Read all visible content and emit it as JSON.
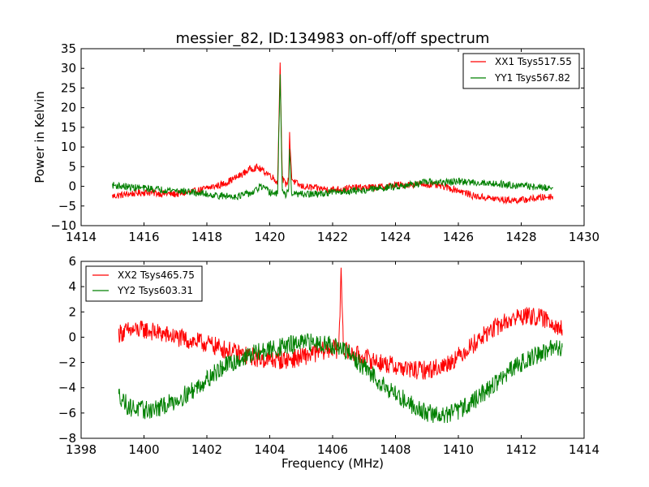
{
  "chart_data": [
    {
      "type": "line",
      "title": "messier_82, ID:134983 on-off/off spectrum",
      "xlabel": "",
      "ylabel": "Power in Kelvin",
      "xlim": [
        1414,
        1430
      ],
      "ylim": [
        -10,
        35
      ],
      "xticks": [
        "1414",
        "1416",
        "1418",
        "1420",
        "1422",
        "1424",
        "1426",
        "1428",
        "1430"
      ],
      "yticks": [
        "−10",
        "−5",
        "0",
        "5",
        "10",
        "15",
        "20",
        "25",
        "30",
        "35"
      ],
      "xtick_values": [
        1414,
        1416,
        1418,
        1420,
        1422,
        1424,
        1426,
        1428,
        1430
      ],
      "ytick_values": [
        -10,
        -5,
        0,
        5,
        10,
        15,
        20,
        25,
        30,
        35
      ],
      "legend_position": "top-right",
      "grid": false,
      "series": [
        {
          "name": "XX1 Tsys517.55",
          "color": "#ff0000",
          "x": [
            1415,
            1415.5,
            1416,
            1416.5,
            1417,
            1417.5,
            1418,
            1418.5,
            1419,
            1419.4,
            1419.6,
            1420,
            1420.25,
            1420.33,
            1420.4,
            1420.5,
            1420.6,
            1420.63,
            1420.7,
            1420.8,
            1421,
            1421.5,
            1422,
            1422.5,
            1423,
            1423.5,
            1424,
            1424.5,
            1425,
            1425.5,
            1426,
            1426.5,
            1427,
            1427.5,
            1428,
            1428.5,
            1429
          ],
          "y": [
            -2.5,
            -2,
            -1.5,
            -1.8,
            -2,
            -1.5,
            -0.5,
            0.5,
            2.5,
            4.5,
            4.8,
            3,
            1,
            31.5,
            2,
            0.5,
            1.5,
            13.3,
            2,
            1,
            0,
            -0.5,
            -0.8,
            -0.5,
            -0.3,
            -0.2,
            0.3,
            0.5,
            0.5,
            0,
            -1,
            -2.5,
            -3,
            -3.5,
            -3.5,
            -3,
            -2.5
          ]
        },
        {
          "name": "YY1 Tsys567.82",
          "color": "#008000",
          "x": [
            1415,
            1415.5,
            1416,
            1416.5,
            1417,
            1417.5,
            1418,
            1418.5,
            1419,
            1419.5,
            1419.7,
            1420,
            1420.25,
            1420.33,
            1420.4,
            1420.5,
            1420.6,
            1420.63,
            1420.7,
            1420.8,
            1421,
            1421.5,
            1422,
            1422.5,
            1423,
            1423.5,
            1424,
            1424.5,
            1425,
            1425.5,
            1426,
            1426.5,
            1427,
            1427.5,
            1428,
            1428.5,
            1429
          ],
          "y": [
            0.3,
            -0.2,
            -0.5,
            -0.8,
            -1,
            -1.5,
            -2,
            -2.5,
            -2.5,
            -1.5,
            0,
            -1.5,
            -2,
            28.5,
            -1,
            -2.5,
            -1,
            9.5,
            -2,
            -2,
            -2,
            -2,
            -1.5,
            -1.2,
            -1,
            -0.5,
            0,
            0.5,
            1,
            1,
            1.2,
            1,
            0.8,
            0.5,
            0.2,
            -0.2,
            -0.5
          ]
        }
      ]
    },
    {
      "type": "line",
      "title": "",
      "xlabel": "Frequency (MHz)",
      "ylabel": "",
      "xlim": [
        1398,
        1414
      ],
      "ylim": [
        -8,
        6
      ],
      "xticks": [
        "1398",
        "1400",
        "1402",
        "1404",
        "1406",
        "1408",
        "1410",
        "1412",
        "1414"
      ],
      "yticks": [
        "−8",
        "−6",
        "−4",
        "−2",
        "0",
        "2",
        "4",
        "6"
      ],
      "xtick_values": [
        1398,
        1400,
        1402,
        1404,
        1406,
        1408,
        1410,
        1412,
        1414
      ],
      "ytick_values": [
        -8,
        -6,
        -4,
        -2,
        0,
        2,
        4,
        6
      ],
      "legend_position": "top-left",
      "grid": false,
      "series": [
        {
          "name": "XX2 Tsys465.75",
          "color": "#ff0000",
          "x": [
            1399.2,
            1399.5,
            1400,
            1400.5,
            1401,
            1401.5,
            1402,
            1402.5,
            1403,
            1403.5,
            1404,
            1404.5,
            1405,
            1405.5,
            1406,
            1406.2,
            1406.27,
            1406.35,
            1406.5,
            1407,
            1407.5,
            1408,
            1408.5,
            1409,
            1409.5,
            1410,
            1410.5,
            1411,
            1411.5,
            1412,
            1412.5,
            1413,
            1413.3
          ],
          "y": [
            0.3,
            0.5,
            0.6,
            0.3,
            0,
            -0.3,
            -0.5,
            -0.9,
            -1.3,
            -1.6,
            -1.8,
            -1.8,
            -1.6,
            -1.2,
            -0.9,
            -1,
            5.5,
            -1,
            -1.2,
            -1.6,
            -2,
            -2.3,
            -2.6,
            -2.6,
            -2.3,
            -1.5,
            -0.5,
            0.5,
            1.2,
            1.7,
            1.6,
            1.2,
            0.6
          ]
        },
        {
          "name": "YY2 Tsys603.31",
          "color": "#008000",
          "x": [
            1399.2,
            1399.5,
            1400,
            1400.5,
            1401,
            1401.5,
            1402,
            1402.5,
            1403,
            1403.5,
            1404,
            1404.5,
            1405,
            1405.5,
            1406,
            1406.5,
            1407,
            1407.5,
            1408,
            1408.5,
            1409,
            1409.5,
            1410,
            1410.5,
            1411,
            1411.5,
            1412,
            1412.5,
            1413,
            1413.3
          ],
          "y": [
            -4.5,
            -5.5,
            -5.8,
            -5.6,
            -5,
            -4.3,
            -3.3,
            -2.4,
            -1.8,
            -1.3,
            -1,
            -0.7,
            -0.5,
            -0.4,
            -0.6,
            -1.3,
            -2.4,
            -3.5,
            -4.5,
            -5.3,
            -6,
            -6.2,
            -5.8,
            -5,
            -4,
            -3,
            -2,
            -1.4,
            -0.9,
            -0.8
          ]
        }
      ]
    }
  ]
}
